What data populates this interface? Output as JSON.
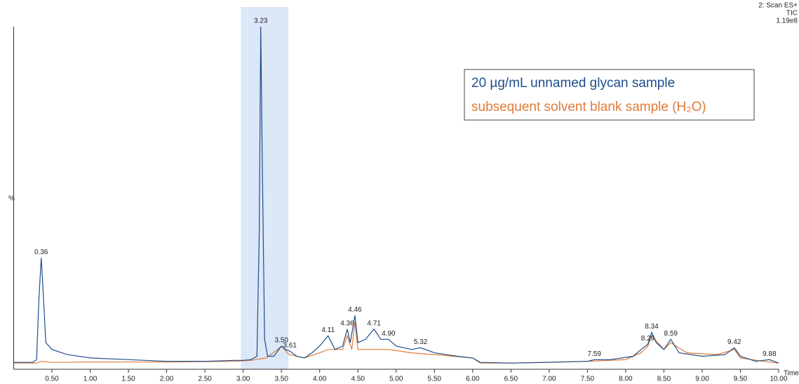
{
  "chart_data": {
    "type": "line",
    "info": [
      "2: Scan ES+",
      "TIC",
      "1.19e8"
    ],
    "x_label": "Time",
    "y_label": "%",
    "xlim": [
      0,
      10
    ],
    "ylim": [
      0,
      100
    ],
    "xticks": [
      {
        "value": 0.5,
        "label": "0.50"
      },
      {
        "value": 1,
        "label": "1.00"
      },
      {
        "value": 1.5,
        "label": "1.50"
      },
      {
        "value": 2,
        "label": "2.00"
      },
      {
        "value": 2.5,
        "label": "2.50"
      },
      {
        "value": 3,
        "label": "3.00"
      },
      {
        "value": 3.5,
        "label": "3.50"
      },
      {
        "value": 4,
        "label": "4.00"
      },
      {
        "value": 4.5,
        "label": "4.50"
      },
      {
        "value": 5,
        "label": "5.00"
      },
      {
        "value": 5.5,
        "label": "5.50"
      },
      {
        "value": 6,
        "label": "6.00"
      },
      {
        "value": 6.5,
        "label": "6.50"
      },
      {
        "value": 7,
        "label": "7.00"
      },
      {
        "value": 7.5,
        "label": "7.50"
      },
      {
        "value": 8,
        "label": "8.00"
      },
      {
        "value": 8.5,
        "label": "8.50"
      },
      {
        "value": 9,
        "label": "9.00"
      },
      {
        "value": 9.5,
        "label": "9.50"
      },
      {
        "value": 10,
        "label": "10.00"
      }
    ],
    "highlight": {
      "range": [
        2.97,
        3.59
      ],
      "color": "#dce7f7"
    },
    "series": [
      {
        "name": "20 µg/mL unnamed glycan sample",
        "color": "#1f4e8c",
        "x": [
          0,
          0.25,
          0.3,
          0.33,
          0.36,
          0.39,
          0.42,
          0.5,
          0.7,
          1.0,
          1.5,
          2.0,
          2.5,
          2.9,
          3.0,
          3.1,
          3.18,
          3.21,
          3.23,
          3.25,
          3.28,
          3.32,
          3.4,
          3.5,
          3.55,
          3.61,
          3.7,
          3.8,
          3.9,
          4.0,
          4.11,
          4.2,
          4.3,
          4.36,
          4.4,
          4.46,
          4.5,
          4.6,
          4.71,
          4.8,
          4.9,
          5.0,
          5.2,
          5.32,
          5.5,
          5.8,
          6.0,
          6.1,
          6.5,
          7.0,
          7.5,
          7.59,
          7.8,
          8.1,
          8.2,
          8.29,
          8.34,
          8.4,
          8.5,
          8.59,
          8.7,
          9.0,
          9.3,
          9.42,
          9.5,
          9.7,
          9.88,
          10.0
        ],
        "values": [
          1.2,
          1.2,
          2,
          20,
          32,
          20,
          7,
          5,
          3.5,
          2.5,
          2,
          1.5,
          1.5,
          1.8,
          1.8,
          2,
          3,
          40,
          100,
          60,
          8,
          3,
          3,
          6,
          5,
          4.5,
          3,
          2.5,
          4,
          6,
          9,
          5,
          6,
          11,
          7,
          15,
          7,
          8,
          11,
          8,
          8,
          6,
          5,
          5.5,
          4,
          3,
          2.5,
          1.2,
          1,
          1.2,
          1.5,
          2,
          2,
          3,
          5,
          6.5,
          10,
          7,
          5,
          8,
          4,
          3,
          3.5,
          5.5,
          3,
          1.5,
          2,
          1
        ]
      },
      {
        "name": "subsequent solvent blank sample (H₂O)",
        "color": "#e07b39",
        "x": [
          0,
          0.3,
          0.36,
          0.5,
          1.0,
          2.0,
          2.9,
          3.1,
          3.3,
          3.45,
          3.5,
          3.6,
          3.8,
          4.0,
          4.11,
          4.3,
          4.36,
          4.42,
          4.46,
          4.5,
          4.7,
          4.9,
          5.2,
          5.5,
          6.0,
          6.1,
          6.5,
          7.5,
          8.0,
          8.2,
          8.29,
          8.34,
          8.5,
          8.59,
          8.8,
          9.2,
          9.42,
          9.5,
          9.8,
          10.0
        ],
        "values": [
          1,
          1,
          1.5,
          1.2,
          1.3,
          1.3,
          1.5,
          1.8,
          2.5,
          5,
          6,
          3.5,
          2.5,
          4,
          5,
          5,
          9,
          5,
          13,
          5,
          5,
          5,
          4,
          3.5,
          2.5,
          1,
          1,
          1.5,
          2,
          4,
          6,
          9,
          5,
          7,
          4,
          3.5,
          5,
          2.5,
          1.5,
          1
        ]
      }
    ],
    "annotations": [
      {
        "text": "0.36",
        "x": 0.36,
        "y": 32
      },
      {
        "text": "3.23",
        "x": 3.23,
        "y": 100
      },
      {
        "text": "3.50",
        "x": 3.5,
        "y": 6
      },
      {
        "text": "3.61",
        "x": 3.61,
        "y": 4.5
      },
      {
        "text": "4.11",
        "x": 4.11,
        "y": 9
      },
      {
        "text": "4.36",
        "x": 4.36,
        "y": 11
      },
      {
        "text": "4.46",
        "x": 4.46,
        "y": 15
      },
      {
        "text": "4.71",
        "x": 4.71,
        "y": 11
      },
      {
        "text": "4.90",
        "x": 4.9,
        "y": 8
      },
      {
        "text": "5.32",
        "x": 5.32,
        "y": 5.5
      },
      {
        "text": "7.59",
        "x": 7.59,
        "y": 2
      },
      {
        "text": "8.29",
        "x": 8.29,
        "y": 6.5
      },
      {
        "text": "8.34",
        "x": 8.34,
        "y": 10
      },
      {
        "text": "8.59",
        "x": 8.59,
        "y": 8
      },
      {
        "text": "9.42",
        "x": 9.42,
        "y": 5.5
      },
      {
        "text": "9.88",
        "x": 9.88,
        "y": 2
      }
    ]
  }
}
